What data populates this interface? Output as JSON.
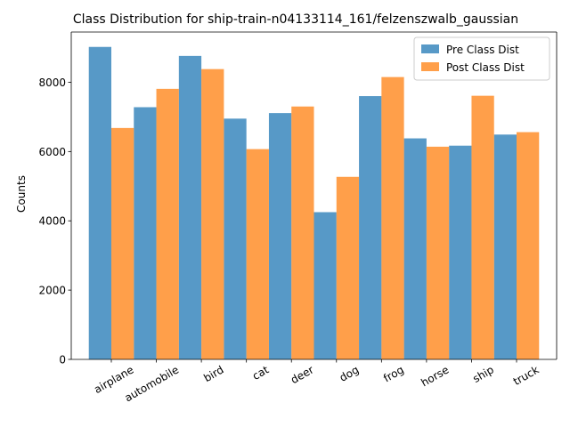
{
  "chart_data": {
    "type": "bar",
    "title": "Class Distribution for ship-train-n04133114_161/felzenszwalb_gaussian",
    "xlabel": "",
    "ylabel": "Counts",
    "categories": [
      "airplane",
      "automobile",
      "bird",
      "cat",
      "deer",
      "dog",
      "frog",
      "horse",
      "ship",
      "truck"
    ],
    "series": [
      {
        "name": "Pre Class Dist",
        "color": "#1f77b4",
        "values": [
          9020,
          7280,
          8760,
          6950,
          7110,
          4250,
          7600,
          6380,
          6170,
          6490
        ]
      },
      {
        "name": "Post Class Dist",
        "color": "#ff7f0e",
        "values": [
          6680,
          7810,
          8380,
          6070,
          7300,
          5270,
          8150,
          6140,
          7610,
          6560
        ]
      }
    ],
    "ylim": [
      0,
      9450
    ],
    "yticks": [
      0,
      2000,
      4000,
      6000,
      8000
    ],
    "bar_opacity": 0.75,
    "grid": false,
    "legend_position": "upper right"
  }
}
